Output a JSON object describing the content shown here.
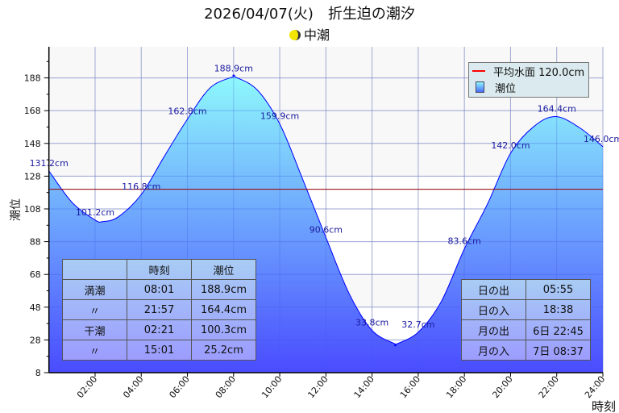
{
  "title": "2026/04/07(火)　折生迫の潮汐",
  "tide_type": "中潮",
  "chart_data": {
    "type": "area",
    "title": "2026/04/07(火)　折生迫の潮汐",
    "xlabel": "時刻",
    "ylabel": "潮位",
    "x_hours": [
      0,
      1,
      2,
      2.35,
      3,
      4,
      5,
      6,
      7,
      8,
      8.017,
      9,
      10,
      11,
      12,
      13,
      14,
      15,
      15.017,
      16,
      17,
      18,
      19,
      20,
      21,
      21.95,
      23,
      24
    ],
    "y_cm": [
      131.2,
      112,
      101.2,
      100.3,
      103.1,
      116.8,
      140.1,
      162.8,
      182.1,
      188.8,
      188.9,
      181.0,
      159.9,
      125.9,
      90.6,
      56.5,
      33.8,
      25.5,
      25.2,
      32.7,
      51.5,
      83.6,
      111.0,
      142.0,
      158.2,
      164.4,
      157.5,
      146.0
    ],
    "data_labels": [
      {
        "hour": 0,
        "text": "131.2cm",
        "value": 131.2
      },
      {
        "hour": 2,
        "text": "101.2cm",
        "value": 101.2
      },
      {
        "hour": 4,
        "text": "116.8cm",
        "value": 116.8
      },
      {
        "hour": 6,
        "text": "162.8cm",
        "value": 162.8
      },
      {
        "hour": 8,
        "text": "188.9cm",
        "value": 188.9
      },
      {
        "hour": 10,
        "text": "159.9cm",
        "value": 159.9
      },
      {
        "hour": 12,
        "text": "90.6cm",
        "value": 90.6
      },
      {
        "hour": 14,
        "text": "33.8cm",
        "value": 33.8
      },
      {
        "hour": 16,
        "text": "32.7cm",
        "value": 32.7
      },
      {
        "hour": 18,
        "text": "83.6cm",
        "value": 83.6
      },
      {
        "hour": 20,
        "text": "142.0cm",
        "value": 142.0
      },
      {
        "hour": 22,
        "text": "164.4cm",
        "value": 164.4
      },
      {
        "hour": 24,
        "text": "146.0cm",
        "value": 146.0
      }
    ],
    "mean_level": 120.0,
    "xlim": [
      0,
      24
    ],
    "ylim": [
      8,
      207
    ],
    "yticks": [
      8,
      28,
      48,
      68,
      88,
      108,
      128,
      148,
      168,
      188
    ],
    "xticks": [
      {
        "h": 2,
        "label": "02:00"
      },
      {
        "h": 4,
        "label": "04:00"
      },
      {
        "h": 6,
        "label": "06:00"
      },
      {
        "h": 8,
        "label": "08:00"
      },
      {
        "h": 10,
        "label": "10:00"
      },
      {
        "h": 12,
        "label": "12:00"
      },
      {
        "h": 14,
        "label": "14:00"
      },
      {
        "h": 16,
        "label": "16:00"
      },
      {
        "h": 18,
        "label": "18:00"
      },
      {
        "h": 20,
        "label": "20:00"
      },
      {
        "h": 22,
        "label": "22:00"
      },
      {
        "h": 24,
        "label": "24:00"
      }
    ],
    "legend": {
      "position": "top-right",
      "items": [
        "平均水面 120.0cm",
        "潮位"
      ]
    },
    "grid": true,
    "colors": {
      "fill_top": "#8ef8fc",
      "fill_bottom": "#4a4cff",
      "line": "#0000ff",
      "mean": "#ff0000",
      "label": "#1a1aa0"
    }
  },
  "tide_table": {
    "headers": [
      "",
      "時刻",
      "潮位"
    ],
    "rows": [
      [
        "満潮",
        "08:01",
        "188.9cm"
      ],
      [
        "〃",
        "21:57",
        "164.4cm"
      ],
      [
        "干潮",
        "02:21",
        "100.3cm"
      ],
      [
        "〃",
        "15:01",
        "25.2cm"
      ]
    ]
  },
  "sun_moon_table": {
    "rows": [
      [
        "日の出",
        "05:55"
      ],
      [
        "日の入",
        "18:38"
      ],
      [
        "月の出",
        "6日 22:45"
      ],
      [
        "月の入",
        "7日 08:37"
      ]
    ]
  }
}
